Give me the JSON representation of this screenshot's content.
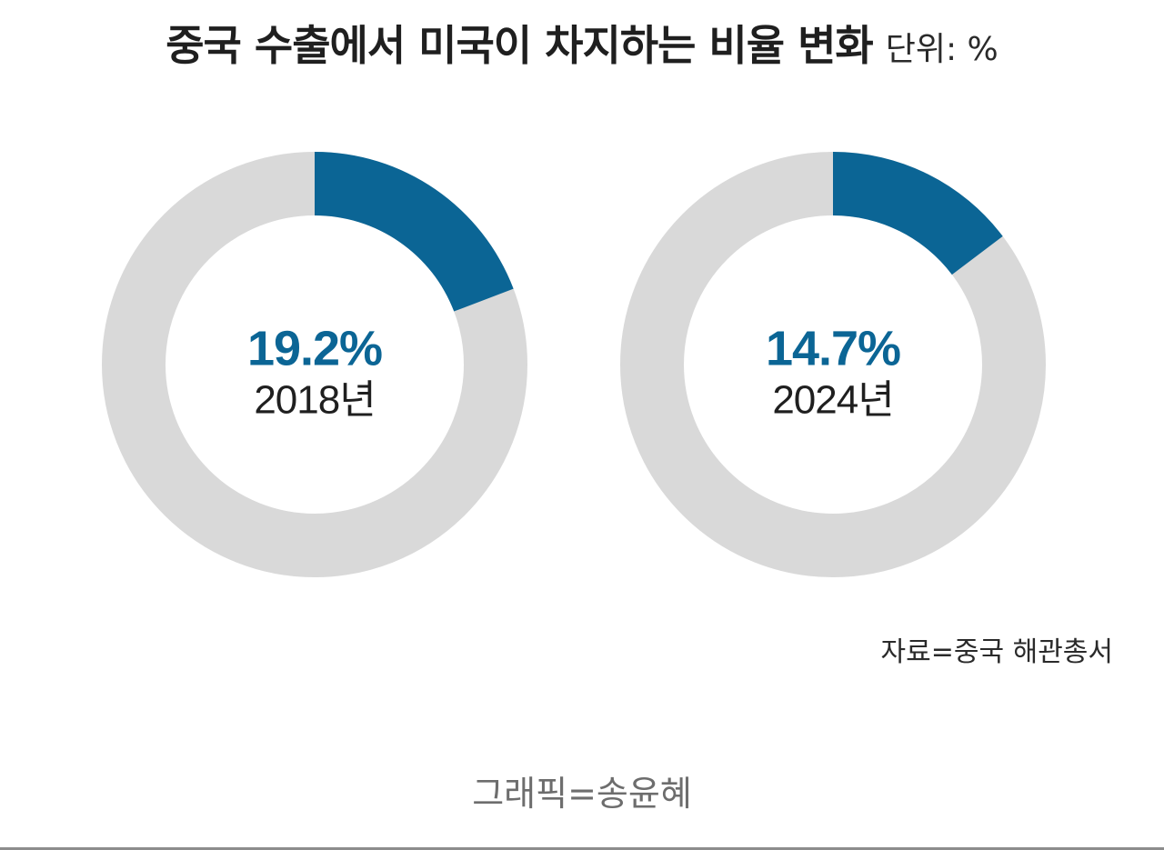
{
  "header": {
    "title": "중국 수출에서 미국이 차지하는 비율 변화",
    "unit": "단위: %"
  },
  "colors": {
    "highlight": "#0b6595",
    "track": "#d9d9d9",
    "year_text": "#1f1f1f"
  },
  "chart_data": [
    {
      "type": "pie",
      "subtype": "donut",
      "value": 19.2,
      "value_label": "19.2%",
      "category": "2018년"
    },
    {
      "type": "pie",
      "subtype": "donut",
      "value": 14.7,
      "value_label": "14.7%",
      "category": "2024년"
    }
  ],
  "source": "자료=중국 해관총서",
  "credit": "그래픽=송윤혜"
}
